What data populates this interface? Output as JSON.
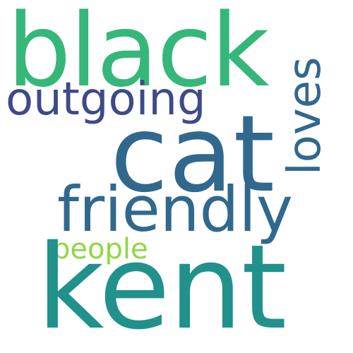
{
  "word_cloud": {
    "background_color": "#ffffff",
    "words": [
      {
        "key": "black",
        "text": "black",
        "color": "#35b779"
      },
      {
        "key": "outgoing",
        "text": "outgoing",
        "color": "#3e4a89"
      },
      {
        "key": "cat",
        "text": "cat",
        "color": "#31688e"
      },
      {
        "key": "loves",
        "text": "loves",
        "color": "#31688e"
      },
      {
        "key": "friendly",
        "text": "friendly",
        "color": "#31688e"
      },
      {
        "key": "people",
        "text": "people",
        "color": "#90d743"
      },
      {
        "key": "kent",
        "text": "kent",
        "color": "#21918c"
      }
    ]
  }
}
